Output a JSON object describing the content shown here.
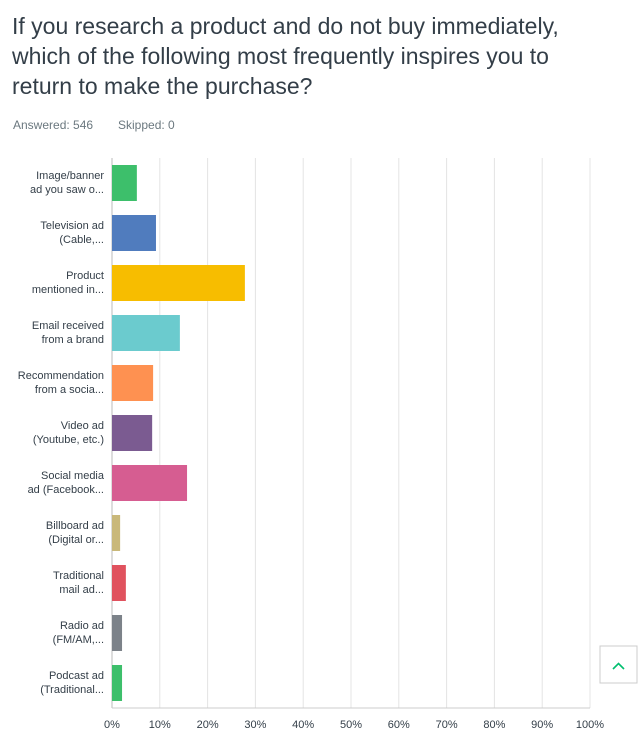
{
  "chart_data": {
    "type": "bar",
    "orientation": "horizontal",
    "title": [
      "If you research a product and do not buy immediately,",
      "which of the following most frequently inspires you to",
      "return to make the purchase?"
    ],
    "answered": "Answered: 546",
    "skipped": "Skipped: 0",
    "categories": [
      [
        "Image/banner",
        "ad you saw o..."
      ],
      [
        "Television ad",
        "(Cable,..."
      ],
      [
        "Product",
        "mentioned in..."
      ],
      [
        "Email received",
        "from a brand"
      ],
      [
        "Recommendation",
        "from a socia..."
      ],
      [
        "Video ad",
        "(Youtube, etc.)"
      ],
      [
        "Social media",
        "ad (Facebook..."
      ],
      [
        "Billboard ad",
        "(Digital or..."
      ],
      [
        "Traditional",
        "mail ad..."
      ],
      [
        "Radio ad",
        "(FM/AM,..."
      ],
      [
        "Podcast ad",
        "(Traditional..."
      ]
    ],
    "values": [
      5.2,
      9.2,
      27.8,
      14.2,
      8.6,
      8.4,
      15.7,
      1.7,
      2.9,
      2.1,
      2.1
    ],
    "colors": [
      "#3dbf6b",
      "#507cbe",
      "#f7bd00",
      "#6bcbce",
      "#fe9151",
      "#7b5b91",
      "#d65d91",
      "#c9b87a",
      "#e0525e",
      "#7c8289",
      "#3dbf6b"
    ],
    "xlim": [
      0,
      100
    ],
    "xticks": [
      {
        "value": 0,
        "label": "0%"
      },
      {
        "value": 10,
        "label": "10%"
      },
      {
        "value": 20,
        "label": "20%"
      },
      {
        "value": 30,
        "label": "30%"
      },
      {
        "value": 40,
        "label": "40%"
      },
      {
        "value": 50,
        "label": "50%"
      },
      {
        "value": 60,
        "label": "60%"
      },
      {
        "value": 70,
        "label": "70%"
      },
      {
        "value": 80,
        "label": "80%"
      },
      {
        "value": 90,
        "label": "90%"
      },
      {
        "value": 100,
        "label": "100%"
      }
    ],
    "grid": true
  }
}
